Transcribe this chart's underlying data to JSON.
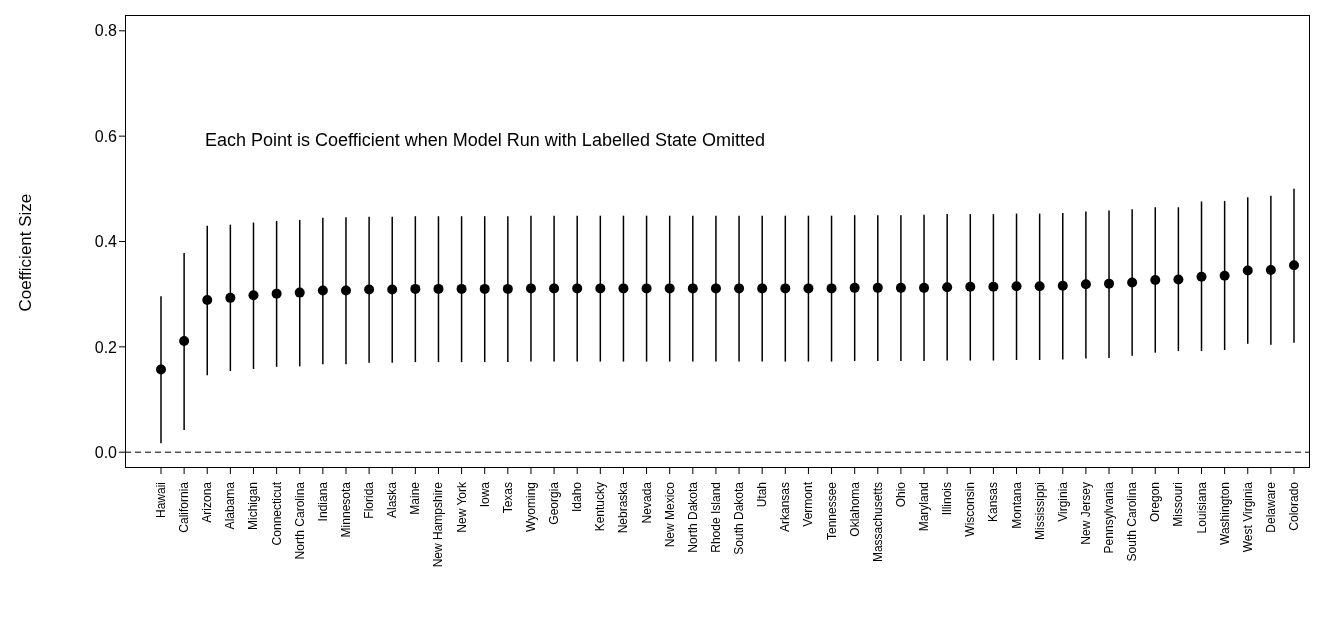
{
  "chart_data": {
    "type": "scatter",
    "ylabel": "Coefficient Size",
    "annotations": [
      "Each Point is Coefficient when Model Run with Labelled State Omitted"
    ],
    "categories": [
      "Hawaii",
      "California",
      "Arizona",
      "Alabama",
      "Michigan",
      "Connecticut",
      "North Carolina",
      "Indiana",
      "Minnesota",
      "Florida",
      "Alaska",
      "Maine",
      "New Hampshire",
      "New York",
      "Iowa",
      "Texas",
      "Wyoming",
      "Georgia",
      "Idaho",
      "Kentucky",
      "Nebraska",
      "Nevada",
      "New Mexico",
      "North Dakota",
      "Rhode Island",
      "South Dakota",
      "Utah",
      "Arkansas",
      "Vermont",
      "Tennessee",
      "Oklahoma",
      "Massachusetts",
      "Ohio",
      "Maryland",
      "Illinois",
      "Wisconsin",
      "Kansas",
      "Montana",
      "Mississippi",
      "Virginia",
      "New Jersey",
      "Pennsylvania",
      "South Carolina",
      "Oregon",
      "Missouri",
      "Louisiana",
      "Washington",
      "West Virginia",
      "Delaware",
      "Colorado"
    ],
    "series": [
      {
        "color": "#000000",
        "values": [
          0.157,
          0.211,
          0.289,
          0.293,
          0.298,
          0.301,
          0.303,
          0.307,
          0.307,
          0.309,
          0.309,
          0.31,
          0.31,
          0.31,
          0.31,
          0.31,
          0.311,
          0.311,
          0.311,
          0.311,
          0.311,
          0.311,
          0.311,
          0.311,
          0.311,
          0.311,
          0.311,
          0.311,
          0.311,
          0.311,
          0.312,
          0.312,
          0.312,
          0.312,
          0.313,
          0.314,
          0.314,
          0.315,
          0.315,
          0.316,
          0.319,
          0.32,
          0.322,
          0.327,
          0.328,
          0.333,
          0.335,
          0.345,
          0.346,
          0.355
        ],
        "errors": [
          [
            0.017,
            0.296
          ],
          [
            0.042,
            0.378
          ],
          [
            0.146,
            0.43
          ],
          [
            0.154,
            0.432
          ],
          [
            0.158,
            0.436
          ],
          [
            0.162,
            0.439
          ],
          [
            0.163,
            0.441
          ],
          [
            0.167,
            0.445
          ],
          [
            0.167,
            0.446
          ],
          [
            0.17,
            0.447
          ],
          [
            0.17,
            0.447
          ],
          [
            0.171,
            0.448
          ],
          [
            0.171,
            0.448
          ],
          [
            0.171,
            0.448
          ],
          [
            0.171,
            0.448
          ],
          [
            0.171,
            0.448
          ],
          [
            0.172,
            0.449
          ],
          [
            0.172,
            0.449
          ],
          [
            0.172,
            0.449
          ],
          [
            0.172,
            0.449
          ],
          [
            0.172,
            0.449
          ],
          [
            0.172,
            0.449
          ],
          [
            0.172,
            0.449
          ],
          [
            0.172,
            0.449
          ],
          [
            0.172,
            0.449
          ],
          [
            0.172,
            0.449
          ],
          [
            0.172,
            0.449
          ],
          [
            0.172,
            0.449
          ],
          [
            0.172,
            0.449
          ],
          [
            0.172,
            0.449
          ],
          [
            0.173,
            0.45
          ],
          [
            0.173,
            0.45
          ],
          [
            0.173,
            0.45
          ],
          [
            0.173,
            0.451
          ],
          [
            0.174,
            0.452
          ],
          [
            0.174,
            0.452
          ],
          [
            0.174,
            0.452
          ],
          [
            0.175,
            0.453
          ],
          [
            0.175,
            0.453
          ],
          [
            0.176,
            0.454
          ],
          [
            0.178,
            0.457
          ],
          [
            0.179,
            0.459
          ],
          [
            0.183,
            0.461
          ],
          [
            0.189,
            0.465
          ],
          [
            0.192,
            0.465
          ],
          [
            0.192,
            0.476
          ],
          [
            0.194,
            0.477
          ],
          [
            0.206,
            0.484
          ],
          [
            0.204,
            0.487
          ],
          [
            0.208,
            0.5
          ]
        ]
      }
    ],
    "ylim": [
      -0.03,
      0.83
    ],
    "yticks": [
      {
        "value": 0,
        "label": "0.0"
      },
      {
        "value": 0.2,
        "label": "0.2"
      },
      {
        "value": 0.4,
        "label": "0.4"
      },
      {
        "value": 0.6,
        "label": "0.6"
      },
      {
        "value": 0.8,
        "label": "0.8"
      }
    ],
    "ref_lines": [
      {
        "axis": "y",
        "value": 0,
        "line_style": "dashed",
        "color": "#000000"
      }
    ],
    "marker": "circle"
  }
}
